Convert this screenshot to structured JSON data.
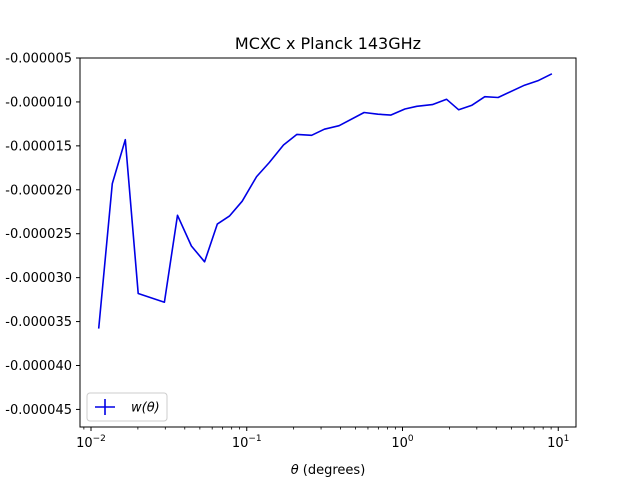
{
  "chart_data": {
    "type": "line",
    "title": "MCXC x Planck 143GHz",
    "xlabel": "θ (degrees)",
    "ylabel": "",
    "x_scale": "log",
    "xlim": [
      0.0085,
      13
    ],
    "ylim": [
      -4.7e-05,
      -5e-06
    ],
    "grid": false,
    "legend_placement": "lower-left",
    "series_color": "#0000e6",
    "x_ticks": [
      {
        "value": 0.01,
        "base": "10",
        "exp": "−2"
      },
      {
        "value": 0.1,
        "base": "10",
        "exp": "−1"
      },
      {
        "value": 1,
        "base": "10",
        "exp": "0"
      },
      {
        "value": 10,
        "base": "10",
        "exp": "1"
      }
    ],
    "y_ticks": [
      {
        "value": -5e-06,
        "label": "-0.000005"
      },
      {
        "value": -1e-05,
        "label": "-0.000010"
      },
      {
        "value": -1.5e-05,
        "label": "-0.000015"
      },
      {
        "value": -2e-05,
        "label": "-0.000020"
      },
      {
        "value": -2.5e-05,
        "label": "-0.000025"
      },
      {
        "value": -3e-05,
        "label": "-0.000030"
      },
      {
        "value": -3.5e-05,
        "label": "-0.000035"
      },
      {
        "value": -4e-05,
        "label": "-0.000040"
      },
      {
        "value": -4.5e-05,
        "label": "-0.000045"
      }
    ],
    "series": [
      {
        "name": "w(θ)",
        "x": [
          0.0112,
          0.0137,
          0.0166,
          0.0201,
          0.0296,
          0.0359,
          0.0441,
          0.0536,
          0.0647,
          0.0774,
          0.0935,
          0.1156,
          0.1393,
          0.1722,
          0.2099,
          0.2607,
          0.3151,
          0.3915,
          0.5671,
          0.6954,
          0.84,
          1.0367,
          1.2347,
          1.557,
          1.9192,
          2.2951,
          2.7761,
          3.3765,
          4.1071,
          6.0723,
          7.3869,
          9.1066
        ],
        "y": [
          -3.58e-05,
          -1.93e-05,
          -1.43e-05,
          -3.18e-05,
          -3.28e-05,
          -2.29e-05,
          -2.64e-05,
          -2.82e-05,
          -2.39e-05,
          -2.3e-05,
          -2.13e-05,
          -1.85e-05,
          -1.69e-05,
          -1.49e-05,
          -1.37e-05,
          -1.38e-05,
          -1.31e-05,
          -1.27e-05,
          -1.12e-05,
          -1.14e-05,
          -1.15e-05,
          -1.08e-05,
          -1.05e-05,
          -1.03e-05,
          -9.7e-06,
          -1.09e-05,
          -1.04e-05,
          -9.4e-06,
          -9.5e-06,
          -8.1e-06,
          -7.6e-06,
          -6.8e-06
        ]
      }
    ]
  }
}
